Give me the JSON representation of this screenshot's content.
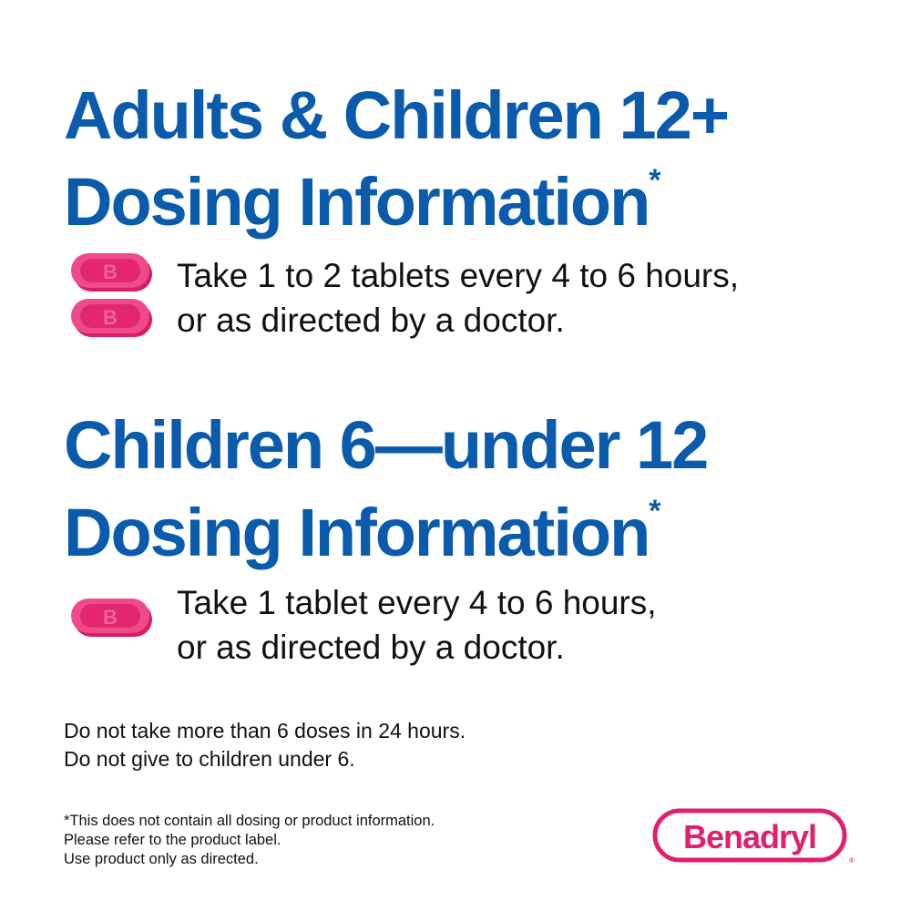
{
  "sections": [
    {
      "heading_line1": "Adults & Children 12+",
      "heading_line2": "Dosing Information",
      "asterisk": "*",
      "tablet_count": 2,
      "instructions": [
        "Take 1 to 2 tablets every 4 to 6 hours,",
        "or as directed by a doctor."
      ]
    },
    {
      "heading_line1": "Children 6—under 12",
      "heading_line2": "Dosing Information",
      "asterisk": "*",
      "tablet_count": 1,
      "instructions": [
        "Take 1 tablet every 4 to 6 hours,",
        "or as directed by a doctor."
      ]
    }
  ],
  "warnings": [
    "Do not take more than 6 doses in 24 hours.",
    "Do not give to children under 6."
  ],
  "footnote": [
    "*This does not contain all dosing or product information.",
    "Please refer to the product label.",
    "Use product only as directed."
  ],
  "logo": {
    "text": "Benadryl",
    "registered": "®"
  },
  "tablet_letter": "B",
  "colors": {
    "heading": "#0a5bab",
    "pink": "#e8317a",
    "logo": "#e0206e"
  }
}
